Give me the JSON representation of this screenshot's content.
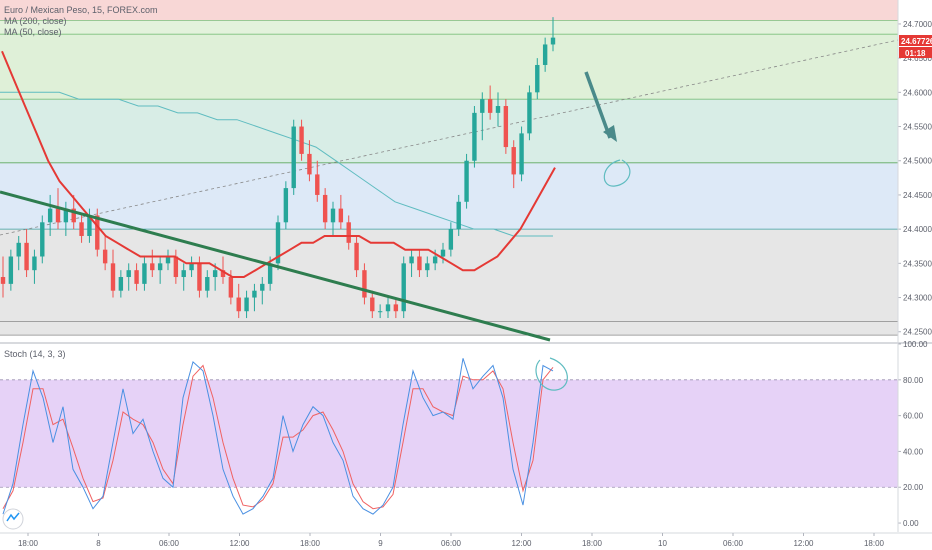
{
  "chart_data": {
    "type": "candlestick",
    "symbol_line": "Euro / Mexican Peso, 15, FOREX.com",
    "indicators": [
      "MA (200, close)",
      "MA (50, close)"
    ],
    "oscillator_label": "Stoch (14, 3, 3)",
    "price_axis": {
      "min": 24.235,
      "max": 24.735,
      "ticks": [
        "24.70000",
        "24.65000",
        "24.60000",
        "24.55000",
        "24.50000",
        "24.45000",
        "24.40000",
        "24.35000",
        "24.30000",
        "24.25000"
      ]
    },
    "current_price": "24.67726",
    "countdown": "01:18",
    "stoch_axis": {
      "min": -5,
      "max": 100,
      "ticks": [
        "100.00",
        "80.00",
        "60.00",
        "40.00",
        "20.00",
        "0.00"
      ]
    },
    "time_axis": {
      "labels": [
        "18:00",
        "8",
        "06:00",
        "12:00",
        "18:00",
        "9",
        "06:00",
        "12:00",
        "18:00",
        "10",
        "06:00",
        "12:00",
        "18:00"
      ]
    },
    "fib_levels": [
      24.735,
      24.705,
      24.685,
      24.59,
      24.497,
      24.4,
      24.265,
      24.245
    ],
    "zone_colors": [
      "#f8d7d6",
      "#e3f2dc",
      "#dff0d8",
      "#d8ede6",
      "#dde9f7",
      "#e6e6e6"
    ],
    "candles": [
      [
        24.33,
        24.36,
        24.3,
        24.32
      ],
      [
        24.32,
        24.37,
        24.31,
        24.36
      ],
      [
        24.36,
        24.39,
        24.34,
        24.38
      ],
      [
        24.38,
        24.4,
        24.33,
        24.34
      ],
      [
        24.34,
        24.37,
        24.32,
        24.36
      ],
      [
        24.36,
        24.42,
        24.35,
        24.41
      ],
      [
        24.41,
        24.45,
        24.39,
        24.43
      ],
      [
        24.43,
        24.46,
        24.4,
        24.41
      ],
      [
        24.41,
        24.44,
        24.39,
        24.43
      ],
      [
        24.43,
        24.45,
        24.4,
        24.41
      ],
      [
        24.41,
        24.42,
        24.38,
        24.39
      ],
      [
        24.39,
        24.43,
        24.38,
        24.42
      ],
      [
        24.42,
        24.43,
        24.36,
        24.37
      ],
      [
        24.37,
        24.39,
        24.34,
        24.35
      ],
      [
        24.35,
        24.37,
        24.3,
        24.31
      ],
      [
        24.31,
        24.34,
        24.3,
        24.33
      ],
      [
        24.33,
        24.35,
        24.31,
        24.34
      ],
      [
        24.34,
        24.35,
        24.31,
        24.32
      ],
      [
        24.32,
        24.36,
        24.31,
        24.35
      ],
      [
        24.35,
        24.37,
        24.33,
        24.34
      ],
      [
        24.34,
        24.36,
        24.32,
        24.35
      ],
      [
        24.35,
        24.37,
        24.34,
        24.36
      ],
      [
        24.36,
        24.37,
        24.32,
        24.33
      ],
      [
        24.33,
        24.35,
        24.31,
        24.34
      ],
      [
        24.34,
        24.36,
        24.33,
        24.35
      ],
      [
        24.35,
        24.36,
        24.3,
        24.31
      ],
      [
        24.31,
        24.34,
        24.3,
        24.33
      ],
      [
        24.33,
        24.35,
        24.31,
        24.34
      ],
      [
        24.34,
        24.36,
        24.32,
        24.33
      ],
      [
        24.33,
        24.34,
        24.29,
        24.3
      ],
      [
        24.3,
        24.32,
        24.27,
        24.28
      ],
      [
        24.28,
        24.31,
        24.27,
        24.3
      ],
      [
        24.3,
        24.32,
        24.28,
        24.31
      ],
      [
        24.31,
        24.33,
        24.29,
        24.32
      ],
      [
        24.32,
        24.36,
        24.31,
        24.35
      ],
      [
        24.35,
        24.42,
        24.34,
        24.41
      ],
      [
        24.41,
        24.47,
        24.4,
        24.46
      ],
      [
        24.46,
        24.56,
        24.45,
        24.55
      ],
      [
        24.55,
        24.56,
        24.5,
        24.51
      ],
      [
        24.51,
        24.53,
        24.47,
        24.48
      ],
      [
        24.48,
        24.5,
        24.44,
        24.45
      ],
      [
        24.45,
        24.46,
        24.4,
        24.41
      ],
      [
        24.41,
        24.44,
        24.39,
        24.43
      ],
      [
        24.43,
        24.45,
        24.4,
        24.41
      ],
      [
        24.41,
        24.42,
        24.37,
        24.38
      ],
      [
        24.38,
        24.39,
        24.33,
        24.34
      ],
      [
        24.34,
        24.35,
        24.29,
        24.3
      ],
      [
        24.3,
        24.31,
        24.27,
        24.28
      ],
      [
        24.28,
        24.29,
        24.27,
        24.28
      ],
      [
        24.28,
        24.3,
        24.27,
        24.29
      ],
      [
        24.29,
        24.3,
        24.27,
        24.28
      ],
      [
        24.28,
        24.36,
        24.27,
        24.35
      ],
      [
        24.35,
        24.37,
        24.33,
        24.36
      ],
      [
        24.36,
        24.37,
        24.33,
        24.34
      ],
      [
        24.34,
        24.36,
        24.33,
        24.35
      ],
      [
        24.35,
        24.37,
        24.34,
        24.36
      ],
      [
        24.36,
        24.38,
        24.35,
        24.37
      ],
      [
        24.37,
        24.41,
        24.36,
        24.4
      ],
      [
        24.4,
        24.45,
        24.39,
        24.44
      ],
      [
        24.44,
        24.51,
        24.43,
        24.5
      ],
      [
        24.5,
        24.58,
        24.49,
        24.57
      ],
      [
        24.57,
        24.6,
        24.53,
        24.59
      ],
      [
        24.59,
        24.61,
        24.56,
        24.57
      ],
      [
        24.57,
        24.6,
        24.55,
        24.58
      ],
      [
        24.58,
        24.59,
        24.51,
        24.52
      ],
      [
        24.52,
        24.53,
        24.46,
        24.48
      ],
      [
        24.48,
        24.55,
        24.47,
        24.54
      ],
      [
        24.54,
        24.61,
        24.53,
        24.6
      ],
      [
        24.6,
        24.65,
        24.59,
        24.64
      ],
      [
        24.64,
        24.68,
        24.63,
        24.67
      ],
      [
        24.67,
        24.71,
        24.66,
        24.68
      ]
    ],
    "ma_50": [
      24.66,
      24.62,
      24.58,
      24.54,
      24.5,
      24.47,
      24.45,
      24.43,
      24.41,
      24.39,
      24.38,
      24.37,
      24.36,
      24.36,
      24.36,
      24.36,
      24.35,
      24.35,
      24.35,
      24.34,
      24.33,
      24.33,
      24.34,
      24.35,
      24.36,
      24.37,
      24.38,
      24.38,
      24.39,
      24.39,
      24.39,
      24.39,
      24.38,
      24.38,
      24.38,
      24.37,
      24.37,
      24.37,
      24.36,
      24.35,
      24.34,
      24.34,
      24.35,
      24.36,
      24.38,
      24.4,
      24.43,
      24.46,
      24.49
    ],
    "ma_200": [
      24.6,
      24.6,
      24.6,
      24.6,
      24.59,
      24.59,
      24.59,
      24.58,
      24.58,
      24.57,
      24.57,
      24.56,
      24.56,
      24.55,
      24.54,
      24.53,
      24.52,
      24.5,
      24.48,
      24.46,
      24.44,
      24.43,
      24.42,
      24.41,
      24.4,
      24.4,
      24.39,
      24.39,
      24.39
    ],
    "stoch_k": [
      5,
      22,
      55,
      85,
      70,
      45,
      65,
      30,
      20,
      8,
      15,
      45,
      75,
      50,
      58,
      40,
      25,
      20,
      70,
      90,
      85,
      60,
      30,
      15,
      5,
      8,
      15,
      25,
      60,
      40,
      55,
      65,
      60,
      45,
      35,
      15,
      8,
      5,
      10,
      20,
      55,
      85,
      70,
      60,
      62,
      58,
      92,
      75,
      82,
      88,
      70,
      30,
      10,
      45,
      88,
      85
    ],
    "stoch_d": [
      8,
      18,
      45,
      75,
      75,
      55,
      58,
      42,
      25,
      12,
      14,
      35,
      62,
      58,
      55,
      45,
      30,
      22,
      55,
      82,
      88,
      70,
      45,
      25,
      10,
      9,
      13,
      22,
      48,
      48,
      52,
      60,
      62,
      52,
      40,
      22,
      12,
      8,
      9,
      16,
      45,
      75,
      75,
      65,
      62,
      60,
      82,
      80,
      80,
      85,
      75,
      45,
      18,
      35,
      80,
      87
    ]
  }
}
